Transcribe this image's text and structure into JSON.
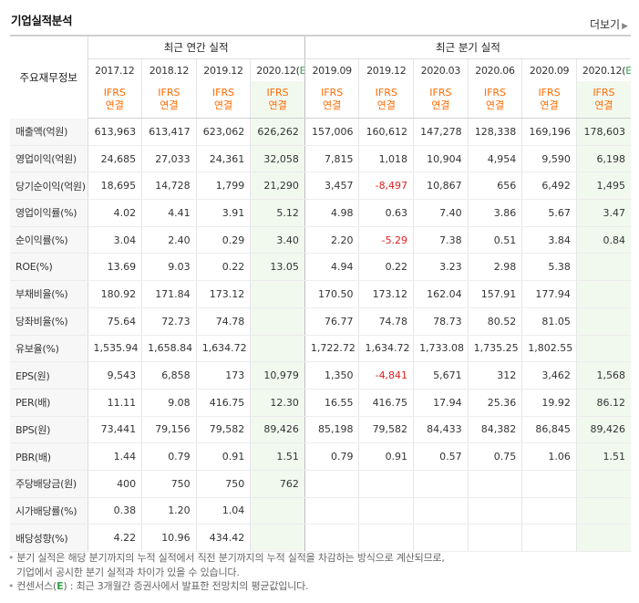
{
  "title": "기업실적분석",
  "more_label": "더보기",
  "header": {
    "label": "주요재무정보",
    "annual_title": "최근 연간 실적",
    "quarter_title": "최근 분기 실적",
    "annual_periods": [
      "2017.12",
      "2018.12",
      "2019.12",
      "2020.12"
    ],
    "quarter_periods": [
      "2019.09",
      "2019.12",
      "2020.03",
      "2020.06",
      "2020.09",
      "2020.12"
    ],
    "estimate_mark": "E",
    "basis_line1": "IFRS",
    "basis_line2": "연결"
  },
  "colors": {
    "estimate_bg": "#f1f9ef",
    "negative": "#e02020",
    "basis": "#ff6b00",
    "estimate_letter": "#35a048"
  },
  "rows": [
    {
      "label": "매출액(억원)",
      "values": [
        "613,963",
        "613,417",
        "623,062",
        "626,262",
        "157,006",
        "160,612",
        "147,278",
        "128,338",
        "169,196",
        "178,603"
      ]
    },
    {
      "label": "영업이익(억원)",
      "values": [
        "24,685",
        "27,033",
        "24,361",
        "32,058",
        "7,815",
        "1,018",
        "10,904",
        "4,954",
        "9,590",
        "6,198"
      ]
    },
    {
      "label": "당기순이익(억원)",
      "values": [
        "18,695",
        "14,728",
        "1,799",
        "21,290",
        "3,457",
        "-8,497",
        "10,867",
        "656",
        "6,492",
        "1,495"
      ]
    },
    {
      "label": "영업이익률(%)",
      "values": [
        "4.02",
        "4.41",
        "3.91",
        "5.12",
        "4.98",
        "0.63",
        "7.40",
        "3.86",
        "5.67",
        "3.47"
      ]
    },
    {
      "label": "순이익률(%)",
      "values": [
        "3.04",
        "2.40",
        "0.29",
        "3.40",
        "2.20",
        "-5.29",
        "7.38",
        "0.51",
        "3.84",
        "0.84"
      ]
    },
    {
      "label": "ROE(%)",
      "values": [
        "13.69",
        "9.03",
        "0.22",
        "13.05",
        "4.94",
        "0.22",
        "3.23",
        "2.98",
        "5.38",
        ""
      ]
    },
    {
      "label": "부채비율(%)",
      "values": [
        "180.92",
        "171.84",
        "173.12",
        "",
        "170.50",
        "173.12",
        "162.04",
        "157.91",
        "177.94",
        ""
      ]
    },
    {
      "label": "당좌비율(%)",
      "values": [
        "75.64",
        "72.73",
        "74.78",
        "",
        "76.77",
        "74.78",
        "78.73",
        "80.52",
        "81.05",
        ""
      ]
    },
    {
      "label": "유보율(%)",
      "values": [
        "1,535.94",
        "1,658.84",
        "1,634.72",
        "",
        "1,722.72",
        "1,634.72",
        "1,733.08",
        "1,735.25",
        "1,802.55",
        ""
      ]
    },
    {
      "label": "EPS(원)",
      "values": [
        "9,543",
        "6,858",
        "173",
        "10,979",
        "1,350",
        "-4,841",
        "5,671",
        "312",
        "3,462",
        "1,568"
      ]
    },
    {
      "label": "PER(배)",
      "values": [
        "11.11",
        "9.08",
        "416.75",
        "12.30",
        "16.55",
        "416.75",
        "17.94",
        "25.36",
        "19.92",
        "86.12"
      ]
    },
    {
      "label": "BPS(원)",
      "values": [
        "73,441",
        "79,156",
        "79,582",
        "89,426",
        "85,198",
        "79,582",
        "84,433",
        "84,382",
        "86,845",
        "89,426"
      ]
    },
    {
      "label": "PBR(배)",
      "values": [
        "1.44",
        "0.79",
        "0.91",
        "1.51",
        "0.79",
        "0.91",
        "0.57",
        "0.75",
        "1.06",
        "1.51"
      ]
    },
    {
      "label": "주당배당금(원)",
      "values": [
        "400",
        "750",
        "750",
        "762",
        "",
        "",
        "",
        "",
        "",
        ""
      ]
    },
    {
      "label": "시가배당률(%)",
      "values": [
        "0.38",
        "1.20",
        "1.04",
        "",
        "",
        "",
        "",
        "",
        "",
        ""
      ]
    },
    {
      "label": "배당성향(%)",
      "values": [
        "4.22",
        "10.96",
        "434.42",
        "",
        "",
        "",
        "",
        "",
        "",
        ""
      ]
    }
  ],
  "notes": {
    "note1_line1": "분기 실적은 해당 분기까지의 누적 실적에서 직전 분기까지의 누적 실적을 차감하는 방식으로 계산되므로,",
    "note1_line2": "기업에서 공시한 분기 실적과 차이가 있을 수 있습니다.",
    "note2_prefix": "컨센서스(",
    "note2_mark": "E",
    "note2_suffix": ") : 최근 3개월간 증권사에서 발표한 전망치의 평균값입니다."
  }
}
